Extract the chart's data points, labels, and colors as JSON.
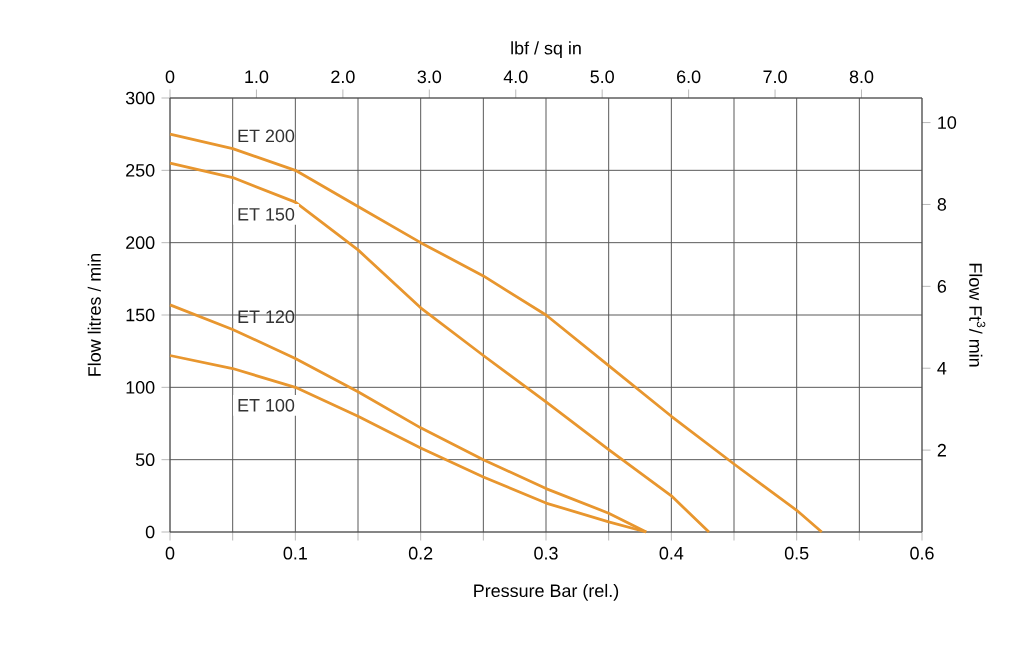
{
  "chart_data": {
    "type": "line",
    "xlabel": "Pressure Bar (rel.)",
    "ylabel": "Flow litres / min",
    "x2label": "lbf / sq in",
    "y2label": "Flow Ft$^{3}$/ min",
    "x": [
      0,
      0.05,
      0.1,
      0.15,
      0.2,
      0.25,
      0.3,
      0.35,
      0.4,
      0.45,
      0.5,
      0.52
    ],
    "series": [
      {
        "name": "ET 200",
        "color": "#e8962e",
        "values": [
          275,
          265,
          250,
          225,
          200,
          177,
          150,
          115,
          80,
          47,
          15,
          0
        ]
      },
      {
        "name": "ET 150",
        "color": "#e8962e",
        "x": [
          0,
          0.05,
          0.1,
          0.15,
          0.2,
          0.25,
          0.3,
          0.35,
          0.4,
          0.43
        ],
        "values": [
          255,
          245,
          228,
          195,
          155,
          122,
          90,
          57,
          25,
          0
        ]
      },
      {
        "name": "ET 120",
        "color": "#e8962e",
        "x": [
          0,
          0.05,
          0.1,
          0.15,
          0.2,
          0.25,
          0.3,
          0.35,
          0.38
        ],
        "values": [
          157,
          140,
          120,
          97,
          72,
          50,
          30,
          13,
          0
        ]
      },
      {
        "name": "ET 100",
        "color": "#e8962e",
        "x": [
          0,
          0.05,
          0.1,
          0.15,
          0.2,
          0.25,
          0.3,
          0.35,
          0.38
        ],
        "values": [
          122,
          113,
          100,
          80,
          58,
          38,
          20,
          7,
          0
        ]
      }
    ],
    "xlim": [
      0,
      0.6
    ],
    "xticks": [
      0,
      {
        "value": 0.05,
        "label": null
      },
      0.1,
      {
        "value": 0.15,
        "label": null
      },
      0.2,
      {
        "value": 0.25,
        "label": null
      },
      0.3,
      {
        "value": 0.35,
        "label": null
      },
      0.4,
      {
        "value": 0.45,
        "label": null
      },
      0.5,
      {
        "value": 0.55,
        "label": null
      },
      0.6
    ],
    "ylim": [
      0,
      300
    ],
    "yticks": [
      0,
      50,
      100,
      150,
      200,
      250,
      300
    ],
    "x2lim": [
      0,
      8.7
    ],
    "x2ticks": [
      0,
      {
        "value": 1,
        "label": "1.0"
      },
      {
        "value": 2,
        "label": "2.0"
      },
      {
        "value": 3,
        "label": "3.0"
      },
      {
        "value": 4,
        "label": "4.0"
      },
      {
        "value": 5,
        "label": "5.0"
      },
      {
        "value": 6,
        "label": "6.0"
      },
      {
        "value": 7,
        "label": "7.0"
      },
      {
        "value": 8,
        "label": "8.0"
      }
    ],
    "y2lim": [
      0,
      10.6
    ],
    "y2ticks": [
      2,
      4,
      6,
      8,
      10
    ],
    "grid": true,
    "legend": false,
    "marker": "none",
    "line_style": "solid"
  }
}
